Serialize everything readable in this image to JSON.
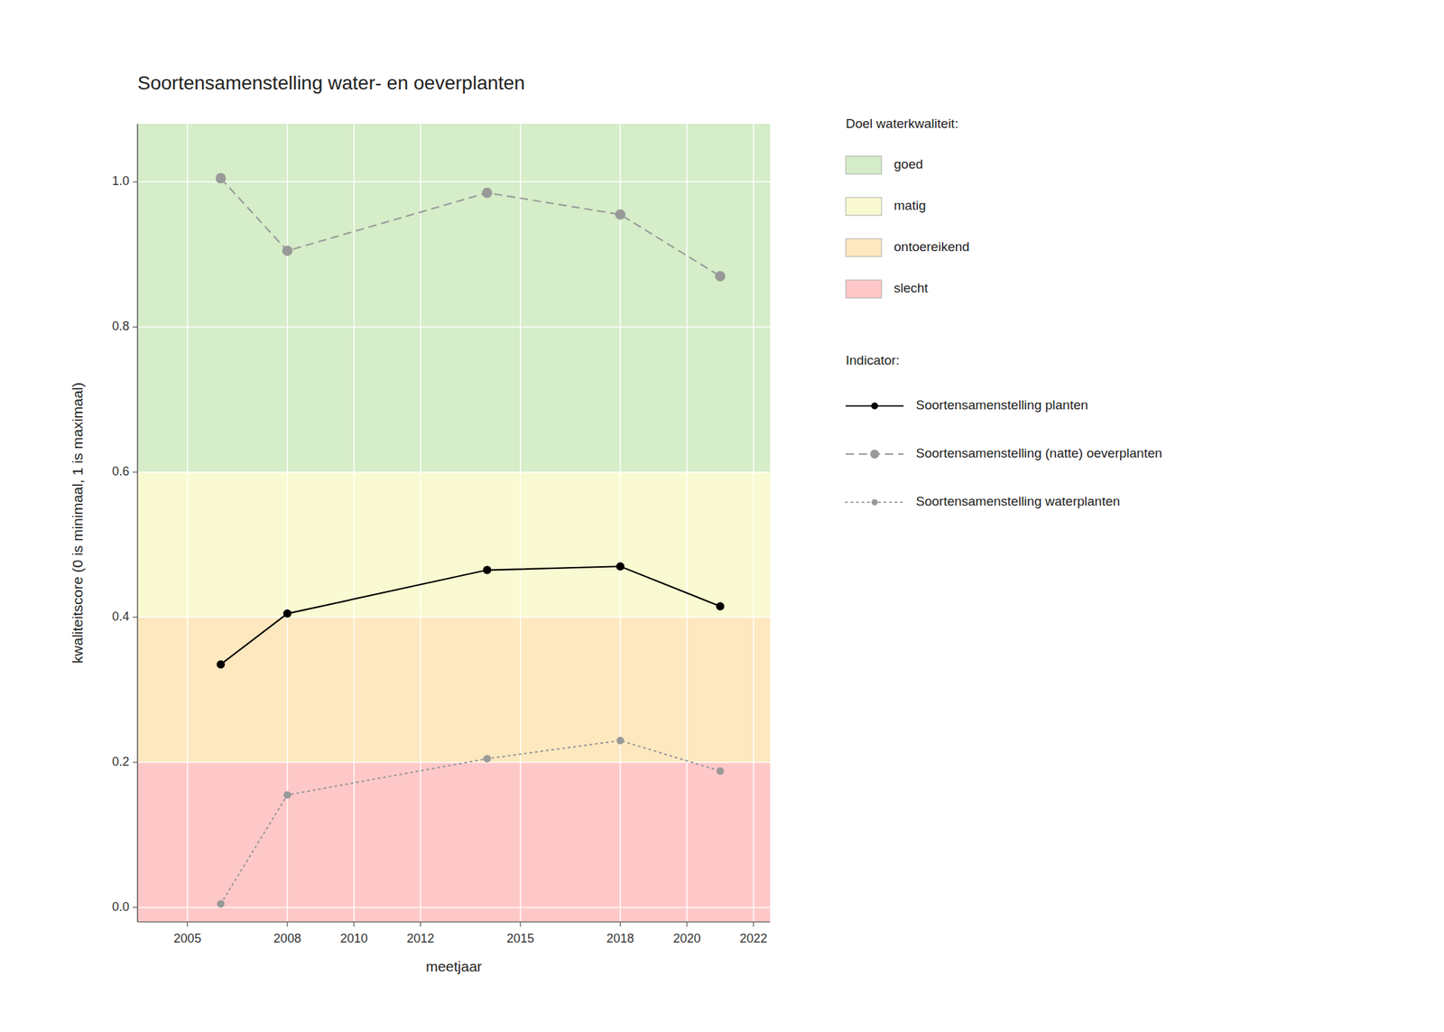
{
  "chart_data": {
    "type": "line",
    "title": "Soortensamenstelling water- en oeverplanten",
    "x_label": "meetjaar",
    "y_label": "kwaliteitscore (0 is minimaal, 1 is maximaal)",
    "x": [
      2006,
      2008,
      2014,
      2018,
      2021
    ],
    "series": [
      {
        "name": "Soortensamenstelling planten",
        "color": "black",
        "line_style": "solid",
        "marker": "circle",
        "values": [
          0.335,
          0.405,
          0.465,
          0.47,
          0.415
        ]
      },
      {
        "name": "Soortensamenstelling (natte) oeverplanten",
        "color": "#999999",
        "line_style": "dashed",
        "marker": "circle",
        "values": [
          1.005,
          0.905,
          0.985,
          0.955,
          0.87
        ]
      },
      {
        "name": "Soortensamenstelling waterplanten",
        "color": "#999999",
        "line_style": "dotted",
        "marker": "circle",
        "values": [
          0.005,
          0.155,
          0.205,
          0.23,
          0.188
        ]
      }
    ],
    "xlim": [
      2003.5,
      2022.5
    ],
    "ylim": [
      -0.02,
      1.08
    ],
    "xticks": [
      2005,
      2008,
      2010,
      2012,
      2015,
      2018,
      2020,
      2022
    ],
    "yticks": [
      {
        "value": 0,
        "label": "0.0"
      },
      0.2,
      0.4,
      0.6,
      0.8,
      {
        "value": 1,
        "label": "1.0"
      }
    ],
    "grid": true,
    "legend": "right",
    "legend_title": "Indicator:",
    "bands_title": "Doel waterkwaliteit:",
    "bands": [
      {
        "name": "goed",
        "from": 0.6,
        "to": 1.08,
        "color": "#d5edc8"
      },
      {
        "name": "matig",
        "from": 0.4,
        "to": 0.6,
        "color": "#fafad2"
      },
      {
        "name": "ontoereikend",
        "from": 0.2,
        "to": 0.4,
        "color": "#fde8c0"
      },
      {
        "name": "slecht",
        "from": -0.02,
        "to": 0.2,
        "color": "#ffc8c8"
      }
    ]
  }
}
